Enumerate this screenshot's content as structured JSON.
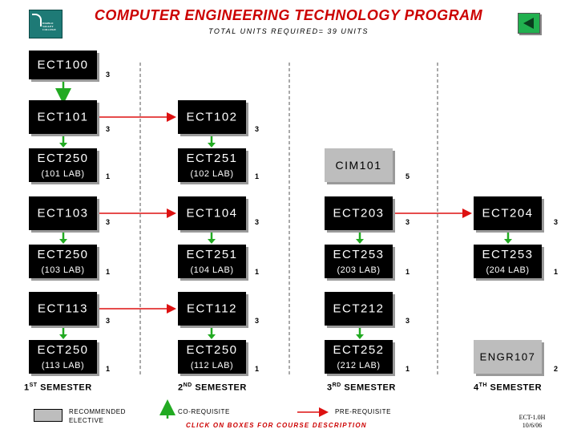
{
  "header": {
    "title": "COMPUTER ENGINEERING TECHNOLOGY PROGRAM",
    "subtitle": "TOTAL UNITS REQUIRED= 39 UNITS",
    "logo_text": [
      "DIABLO",
      "VALLEY",
      "COLLEGE"
    ]
  },
  "courses": {
    "ect100": {
      "code": "ECT100",
      "units": "3"
    },
    "ect101": {
      "code": "ECT101",
      "units": "3"
    },
    "ect250_101": {
      "code": "ECT250",
      "lab": "(101 LAB)",
      "units": "1"
    },
    "ect103": {
      "code": "ECT103",
      "units": "3"
    },
    "ect250_103": {
      "code": "ECT250",
      "lab": "(103 LAB)",
      "units": "1"
    },
    "ect113": {
      "code": "ECT113",
      "units": "3"
    },
    "ect250_113": {
      "code": "ECT250",
      "lab": "(113 LAB)",
      "units": "1"
    },
    "ect102": {
      "code": "ECT102",
      "units": "3"
    },
    "ect251_102": {
      "code": "ECT251",
      "lab": "(102 LAB)",
      "units": "1"
    },
    "ect104": {
      "code": "ECT104",
      "units": "3"
    },
    "ect251_104": {
      "code": "ECT251",
      "lab": "(104 LAB)",
      "units": "1"
    },
    "ect112": {
      "code": "ECT112",
      "units": "3"
    },
    "ect250_112": {
      "code": "ECT250",
      "lab": "(112 LAB)",
      "units": "1"
    },
    "cim101": {
      "code": "CIM101",
      "units": "5"
    },
    "ect203": {
      "code": "ECT203",
      "units": "3"
    },
    "ect253_203": {
      "code": "ECT253",
      "lab": "(203 LAB)",
      "units": "1"
    },
    "ect212": {
      "code": "ECT212",
      "units": "3"
    },
    "ect252_212": {
      "code": "ECT252",
      "lab": "(212 LAB)",
      "units": "1"
    },
    "ect204": {
      "code": "ECT204",
      "units": "3"
    },
    "ect253_204": {
      "code": "ECT253",
      "lab": "(204 LAB)",
      "units": "1"
    },
    "engr107": {
      "code": "ENGR107",
      "units": "2"
    }
  },
  "semesters": {
    "s1": {
      "num": "1",
      "sup": "ST",
      "label": "SEMESTER"
    },
    "s2": {
      "num": "2",
      "sup": "ND",
      "label": "SEMESTER"
    },
    "s3": {
      "num": "3",
      "sup": "RD",
      "label": "SEMESTER"
    },
    "s4": {
      "num": "4",
      "sup": "TH",
      "label": "SEMESTER"
    }
  },
  "legend": {
    "recommended_line1": "RECOMMENDED",
    "recommended_line2": "ELECTIVE",
    "corequisite": "CO-REQUISITE",
    "prerequisite": "PRE-REQUISITE",
    "click_note": "CLICK ON BOXES FOR COURSE DESCRIPTION"
  },
  "doc_id": {
    "line1": "ECT-1.0H",
    "line2": "10/6/06"
  },
  "colors": {
    "title": "#cc0000",
    "box": "#000000",
    "elective": "#bdbdbd",
    "corequisite_arrow": "#22aa22",
    "prerequisite_arrow": "#dd1111"
  }
}
